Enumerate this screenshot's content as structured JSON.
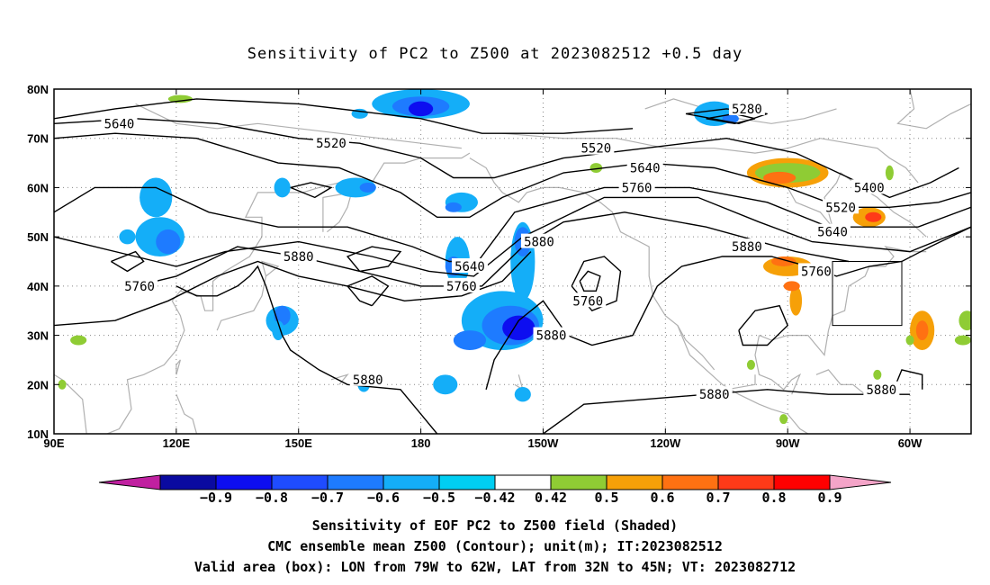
{
  "title": "Sensitivity of PC2 to Z500 at 2023082512 +0.5 day",
  "lat_labels": [
    "80N",
    "70N",
    "60N",
    "50N",
    "40N",
    "30N",
    "20N",
    "10N"
  ],
  "lon_labels": [
    "90E",
    "120E",
    "150E",
    "180",
    "150W",
    "120W",
    "90W",
    "60W"
  ],
  "contours": [
    {
      "value": "5640",
      "lon": 106,
      "lat": 73
    },
    {
      "value": "5520",
      "lon": 158,
      "lat": 69
    },
    {
      "value": "5280",
      "lon": 260,
      "lat": 76
    },
    {
      "value": "5520",
      "lon": 223,
      "lat": 68
    },
    {
      "value": "5640",
      "lon": 235,
      "lat": 64
    },
    {
      "value": "5760",
      "lon": 233,
      "lat": 60
    },
    {
      "value": "5400",
      "lon": 290,
      "lat": 60
    },
    {
      "value": "5520",
      "lon": 283,
      "lat": 56
    },
    {
      "value": "5640",
      "lon": 281,
      "lat": 51
    },
    {
      "value": "5880",
      "lon": 209,
      "lat": 49
    },
    {
      "value": "5880",
      "lon": 260,
      "lat": 48
    },
    {
      "value": "5760",
      "lon": 277,
      "lat": 43
    },
    {
      "value": "5880",
      "lon": 150,
      "lat": 46
    },
    {
      "value": "5640",
      "lon": 192,
      "lat": 44
    },
    {
      "value": "5760",
      "lon": 190,
      "lat": 40
    },
    {
      "value": "5760",
      "lon": 111,
      "lat": 40
    },
    {
      "value": "5760",
      "lon": 221,
      "lat": 37
    },
    {
      "value": "5880",
      "lon": 212,
      "lat": 30
    },
    {
      "value": "5880",
      "lon": 167,
      "lat": 21
    },
    {
      "value": "5880",
      "lon": 252,
      "lat": 18
    },
    {
      "value": "5880",
      "lon": 293,
      "lat": 19
    }
  ],
  "valid_box": {
    "lon_min": -79,
    "lon_max": -62,
    "lat_min": 32,
    "lat_max": 45
  },
  "colorbar": {
    "labels": [
      "−0.9",
      "−0.8",
      "−0.7",
      "−0.6",
      "−0.5",
      "−0.42",
      "0.42",
      "0.5",
      "0.6",
      "0.7",
      "0.8",
      "0.9"
    ],
    "colors": [
      "#0a0aa0",
      "#0d0ef0",
      "#1f4cff",
      "#1e7bff",
      "#14aef8",
      "#00cef2",
      "#ffffff",
      "#8fcc34",
      "#f6a008",
      "#ff7112",
      "#ff3a18",
      "#ff0000"
    ],
    "low_end_color": "#c020a0",
    "high_end_color": "#f4a4c8"
  },
  "caption": {
    "line1": "Sensitivity of EOF PC2 to Z500 field (Shaded)",
    "line2": "CMC ensemble mean Z500 (Contour); unit(m); IT:2023082512",
    "line3": "Valid area (box): LON from 79W to 62W, LAT from 32N to 45N; VT: 2023082712"
  }
}
